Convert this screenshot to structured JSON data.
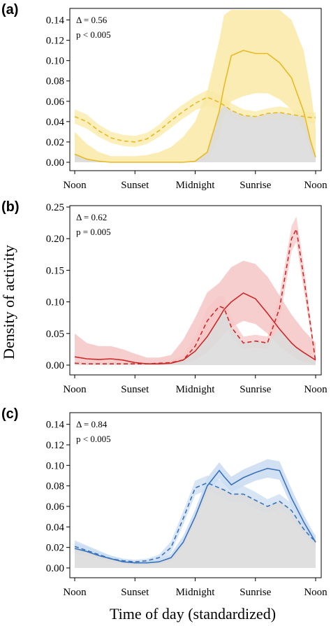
{
  "figure": {
    "ylabel": "Density of activity",
    "xlabel": "Time of day (standardized)"
  },
  "chart_data": [
    {
      "type": "area",
      "panel_label": "(a)",
      "annotations": [
        "Δ = 0.56",
        "p < 0.005"
      ],
      "color": "#e8b923",
      "band_color": "#fae9a6",
      "overlap_color": "#dcdcdc",
      "x_ticks": [
        "Noon",
        "Sunset",
        "Midnight",
        "Sunrise",
        "Noon"
      ],
      "x_tick_positions": [
        0,
        0.25,
        0.5,
        0.75,
        1.0
      ],
      "xlim": [
        0,
        1
      ],
      "ylim": [
        0,
        0.15
      ],
      "y_ticks": [
        0.0,
        0.02,
        0.04,
        0.06,
        0.08,
        0.1,
        0.12,
        0.14
      ],
      "y_tick_labels": [
        "0.00",
        "0.02",
        "0.04",
        "0.06",
        "0.08",
        "0.10",
        "0.12",
        "0.14"
      ],
      "x": [
        0,
        0.05,
        0.1,
        0.15,
        0.2,
        0.25,
        0.3,
        0.35,
        0.4,
        0.45,
        0.5,
        0.55,
        0.6,
        0.62,
        0.65,
        0.7,
        0.75,
        0.8,
        0.85,
        0.9,
        0.95,
        0.98,
        1.0
      ],
      "series": [
        {
          "line": "solid",
          "values": [
            0.008,
            0.003,
            0.001,
            0.0,
            0.0,
            0.0,
            0.0,
            0.0,
            0.0,
            0.0,
            0.001,
            0.01,
            0.05,
            0.075,
            0.105,
            0.11,
            0.107,
            0.107,
            0.098,
            0.083,
            0.05,
            0.02,
            0.005
          ],
          "lower": [
            0.002,
            0.0,
            0.0,
            0.0,
            0.0,
            0.0,
            0.0,
            0.0,
            0.0,
            0.0,
            0.0,
            0.002,
            0.025,
            0.045,
            0.06,
            0.065,
            0.068,
            0.068,
            0.062,
            0.052,
            0.03,
            0.01,
            0.001
          ],
          "upper": [
            0.03,
            0.018,
            0.01,
            0.006,
            0.006,
            0.006,
            0.007,
            0.01,
            0.015,
            0.025,
            0.04,
            0.07,
            0.12,
            0.145,
            0.15,
            0.15,
            0.15,
            0.15,
            0.15,
            0.14,
            0.11,
            0.07,
            0.035
          ]
        },
        {
          "line": "dashed",
          "values": [
            0.045,
            0.04,
            0.031,
            0.024,
            0.021,
            0.02,
            0.023,
            0.031,
            0.041,
            0.05,
            0.058,
            0.064,
            0.059,
            0.056,
            0.051,
            0.046,
            0.045,
            0.048,
            0.049,
            0.047,
            0.045,
            0.044,
            0.044
          ],
          "lower": [
            0.038,
            0.033,
            0.025,
            0.019,
            0.016,
            0.015,
            0.018,
            0.025,
            0.034,
            0.043,
            0.051,
            0.056,
            0.052,
            0.049,
            0.045,
            0.041,
            0.04,
            0.042,
            0.043,
            0.042,
            0.04,
            0.039,
            0.039
          ],
          "upper": [
            0.052,
            0.047,
            0.037,
            0.03,
            0.027,
            0.026,
            0.029,
            0.037,
            0.048,
            0.057,
            0.065,
            0.071,
            0.067,
            0.063,
            0.058,
            0.052,
            0.05,
            0.053,
            0.055,
            0.053,
            0.05,
            0.049,
            0.049
          ]
        }
      ]
    },
    {
      "type": "area",
      "panel_label": "(b)",
      "annotations": [
        "Δ = 0.62",
        "p = 0.005"
      ],
      "color": "#cc2929",
      "band_color": "#f6c6c6",
      "overlap_color": "#dcdcdc",
      "x_ticks": [
        "Noon",
        "Sunset",
        "Midnight",
        "Sunrise",
        "Noon"
      ],
      "x_tick_positions": [
        0,
        0.25,
        0.5,
        0.75,
        1.0
      ],
      "xlim": [
        0,
        1
      ],
      "ylim": [
        0,
        0.25
      ],
      "y_ticks": [
        0.0,
        0.05,
        0.1,
        0.15,
        0.2,
        0.25
      ],
      "y_tick_labels": [
        "0.00",
        "0.05",
        "0.10",
        "0.15",
        "0.20",
        "0.25"
      ],
      "x": [
        0,
        0.05,
        0.1,
        0.15,
        0.2,
        0.25,
        0.3,
        0.35,
        0.4,
        0.45,
        0.5,
        0.55,
        0.6,
        0.62,
        0.65,
        0.7,
        0.75,
        0.8,
        0.85,
        0.9,
        0.92,
        0.95,
        1.0
      ],
      "series": [
        {
          "line": "solid",
          "values": [
            0.013,
            0.01,
            0.009,
            0.01,
            0.008,
            0.004,
            0.002,
            0.002,
            0.003,
            0.008,
            0.022,
            0.045,
            0.075,
            0.088,
            0.1,
            0.114,
            0.105,
            0.082,
            0.057,
            0.035,
            0.028,
            0.02,
            0.008
          ],
          "lower": [
            0.002,
            0.002,
            0.002,
            0.002,
            0.001,
            0.0,
            0.0,
            0.0,
            0.0,
            0.001,
            0.008,
            0.02,
            0.04,
            0.05,
            0.06,
            0.07,
            0.065,
            0.05,
            0.03,
            0.015,
            0.01,
            0.005,
            0.001
          ],
          "upper": [
            0.05,
            0.035,
            0.03,
            0.03,
            0.025,
            0.018,
            0.012,
            0.012,
            0.016,
            0.04,
            0.075,
            0.115,
            0.13,
            0.14,
            0.155,
            0.165,
            0.16,
            0.14,
            0.11,
            0.08,
            0.07,
            0.055,
            0.035
          ]
        },
        {
          "line": "dashed",
          "values": [
            0.003,
            0.002,
            0.002,
            0.002,
            0.002,
            0.002,
            0.002,
            0.003,
            0.004,
            0.008,
            0.03,
            0.07,
            0.093,
            0.09,
            0.06,
            0.035,
            0.038,
            0.035,
            0.09,
            0.2,
            0.215,
            0.14,
            0.005
          ],
          "lower": [
            0.001,
            0.0,
            0.0,
            0.0,
            0.0,
            0.0,
            0.0,
            0.001,
            0.001,
            0.003,
            0.015,
            0.05,
            0.075,
            0.072,
            0.045,
            0.025,
            0.028,
            0.025,
            0.07,
            0.18,
            0.195,
            0.12,
            0.002
          ],
          "upper": [
            0.006,
            0.004,
            0.004,
            0.004,
            0.004,
            0.004,
            0.004,
            0.005,
            0.007,
            0.015,
            0.045,
            0.09,
            0.11,
            0.108,
            0.075,
            0.045,
            0.048,
            0.045,
            0.11,
            0.22,
            0.235,
            0.16,
            0.01
          ]
        }
      ]
    },
    {
      "type": "area",
      "panel_label": "(c)",
      "annotations": [
        "Δ = 0.84",
        "p < 0.005"
      ],
      "color": "#3a72bd",
      "band_color": "#c9dcf1",
      "overlap_color": "#dcdcdc",
      "x_ticks": [
        "Noon",
        "Sunset",
        "Midnight",
        "Sunrise",
        "Noon"
      ],
      "x_tick_positions": [
        0,
        0.25,
        0.5,
        0.75,
        1.0
      ],
      "xlim": [
        0,
        1
      ],
      "ylim": [
        0,
        0.15
      ],
      "y_ticks": [
        0.0,
        0.02,
        0.04,
        0.06,
        0.08,
        0.1,
        0.12,
        0.14
      ],
      "y_tick_labels": [
        "0.00",
        "0.02",
        "0.04",
        "0.06",
        "0.08",
        "0.10",
        "0.12",
        "0.14"
      ],
      "x": [
        0,
        0.05,
        0.1,
        0.15,
        0.2,
        0.25,
        0.3,
        0.35,
        0.4,
        0.45,
        0.5,
        0.55,
        0.6,
        0.62,
        0.65,
        0.7,
        0.75,
        0.8,
        0.85,
        0.9,
        0.95,
        0.98,
        1.0
      ],
      "series": [
        {
          "line": "solid",
          "values": [
            0.019,
            0.016,
            0.012,
            0.009,
            0.006,
            0.005,
            0.005,
            0.006,
            0.01,
            0.025,
            0.05,
            0.08,
            0.095,
            0.089,
            0.081,
            0.088,
            0.093,
            0.097,
            0.095,
            0.068,
            0.045,
            0.033,
            0.025
          ],
          "lower": [
            0.014,
            0.012,
            0.009,
            0.006,
            0.004,
            0.003,
            0.003,
            0.004,
            0.007,
            0.02,
            0.044,
            0.073,
            0.087,
            0.082,
            0.074,
            0.08,
            0.085,
            0.088,
            0.086,
            0.06,
            0.039,
            0.028,
            0.02
          ],
          "upper": [
            0.025,
            0.021,
            0.016,
            0.012,
            0.009,
            0.007,
            0.007,
            0.009,
            0.014,
            0.031,
            0.057,
            0.088,
            0.103,
            0.097,
            0.089,
            0.096,
            0.101,
            0.106,
            0.104,
            0.077,
            0.052,
            0.039,
            0.031
          ]
        },
        {
          "line": "dashed",
          "values": [
            0.021,
            0.017,
            0.013,
            0.009,
            0.007,
            0.006,
            0.007,
            0.01,
            0.02,
            0.048,
            0.078,
            0.083,
            0.078,
            0.076,
            0.072,
            0.072,
            0.066,
            0.06,
            0.065,
            0.056,
            0.038,
            0.03,
            0.026
          ],
          "lower": [
            0.016,
            0.013,
            0.01,
            0.007,
            0.005,
            0.004,
            0.005,
            0.007,
            0.015,
            0.042,
            0.071,
            0.076,
            0.07,
            0.068,
            0.064,
            0.064,
            0.058,
            0.053,
            0.058,
            0.049,
            0.032,
            0.025,
            0.021
          ],
          "upper": [
            0.027,
            0.022,
            0.017,
            0.012,
            0.009,
            0.008,
            0.009,
            0.013,
            0.026,
            0.055,
            0.085,
            0.09,
            0.086,
            0.084,
            0.08,
            0.08,
            0.074,
            0.067,
            0.072,
            0.063,
            0.045,
            0.036,
            0.032
          ]
        }
      ]
    }
  ]
}
